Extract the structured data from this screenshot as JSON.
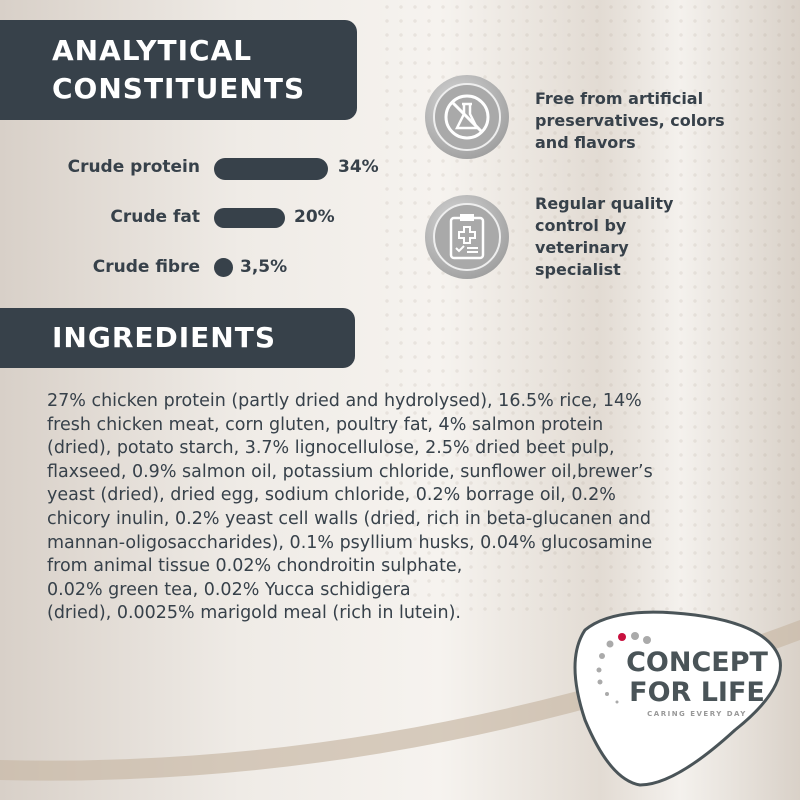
{
  "analytical": {
    "title_line1": "ANALYTICAL",
    "title_line2": "CONSTITUENTS",
    "items": [
      {
        "label": "Crude protein",
        "value": "34%",
        "percent": 34
      },
      {
        "label": "Crude fat",
        "value": "20%",
        "percent": 20
      },
      {
        "label": "Crude fibre",
        "value": "3,5%",
        "percent": 3.5
      }
    ]
  },
  "features": [
    {
      "icon": "no-flask-icon",
      "text_lines": [
        "Free from artificial",
        "preservatives, colors",
        "and flavors"
      ]
    },
    {
      "icon": "clipboard-checklist-icon",
      "text_lines": [
        "Regular quality",
        "control by",
        "veterinary",
        "specialist"
      ]
    }
  ],
  "ingredients": {
    "title": "INGREDIENTS",
    "lines": [
      "27% chicken protein (partly dried and hydrolysed), 16.5% rice, 14%",
      "fresh chicken meat, corn gluten, poultry fat, 4% salmon protein",
      "(dried), potato starch, 3.7% lignocellulose, 2.5% dried beet pulp,",
      "flaxseed, 0.9% salmon oil, potassium chloride, sunflower oil,brewer’s",
      "yeast (dried), dried egg, sodium chloride, 0.2% borrage oil, 0.2%",
      "chicory inulin, 0.2% yeast cell walls (dried, rich in beta-glucanen and",
      "mannan-oligosaccharides), 0.1% psyllium husks, 0.04% glucosamine",
      "from animal tissue 0.02% chondroitin sulphate,",
      "0.02% green tea, 0.02% Yucca schidigera",
      "(dried), 0.0025% marigold meal (rich in lutein)."
    ]
  },
  "logo": {
    "line1": "CONCEPT",
    "line2": "FOR LIFE",
    "tagline": "CARING EVERY DAY"
  },
  "colors": {
    "dark": "#37414a",
    "accent": "#c8103e"
  }
}
